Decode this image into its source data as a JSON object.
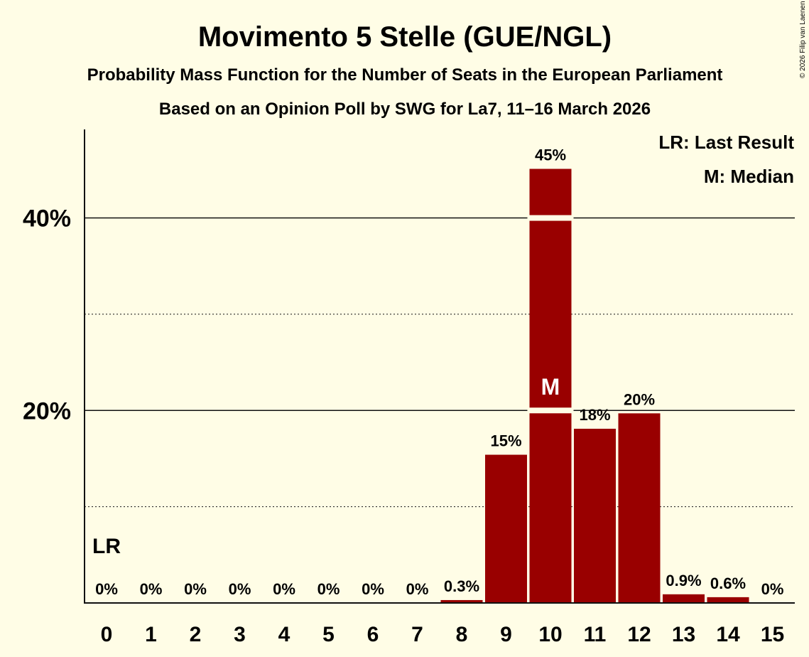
{
  "chart_data": {
    "type": "bar",
    "title": "Movimento 5 Stelle (GUE/NGL)",
    "subtitle": "Probability Mass Function for the Number of Seats in the European Parliament",
    "subtitle2": "Based on an Opinion Poll by SWG for La7, 11–16 March 2026",
    "copyright": "© 2026 Filip van Laenen",
    "categories": [
      "0",
      "1",
      "2",
      "3",
      "4",
      "5",
      "6",
      "7",
      "8",
      "9",
      "10",
      "11",
      "12",
      "13",
      "14",
      "15"
    ],
    "values": [
      0,
      0,
      0,
      0,
      0,
      0,
      0,
      0,
      0.3,
      15.4,
      45.1,
      18.1,
      19.7,
      0.9,
      0.6,
      0
    ],
    "value_labels": [
      "0%",
      "0%",
      "0%",
      "0%",
      "0%",
      "0%",
      "0%",
      "0%",
      "0.3%",
      "15%",
      "45%",
      "18%",
      "20%",
      "0.9%",
      "0.6%",
      "0%"
    ],
    "ylim": [
      0,
      49.2
    ],
    "y_major_ticks": [
      20,
      40
    ],
    "y_major_labels": [
      "20%",
      "40%"
    ],
    "y_minor_ticks": [
      10,
      30
    ],
    "last_result_seat": 0,
    "median_seat": 10,
    "lr_marker": "LR",
    "median_marker": "M",
    "legend": [
      "LR: Last Result",
      "M: Median"
    ],
    "bar_color": "#990000"
  }
}
